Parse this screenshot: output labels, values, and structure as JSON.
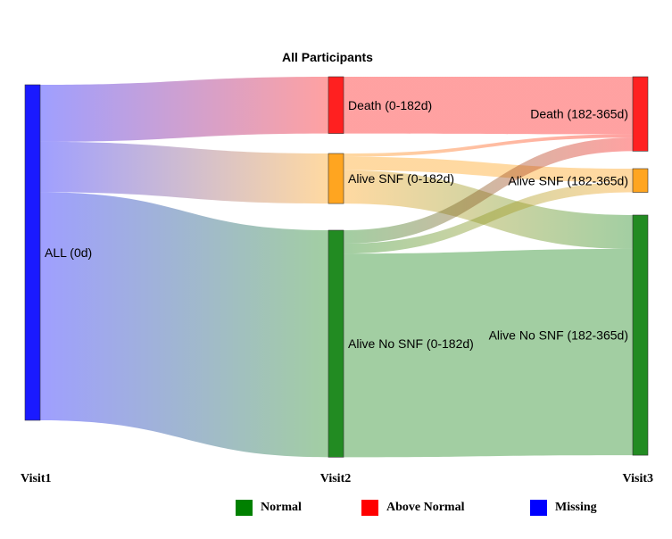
{
  "chart_data": {
    "type": "sankey",
    "title": "All Participants",
    "stages": [
      "Visit1",
      "Visit2",
      "Visit3"
    ],
    "nodes": [
      {
        "id": "all",
        "label": "ALL (0d)",
        "stage": 0,
        "color": "#1a1aff",
        "value": 100
      },
      {
        "id": "death1",
        "label": "Death (0-182d)",
        "stage": 1,
        "color": "#ff2020",
        "value": 17
      },
      {
        "id": "snf1",
        "label": "Alive SNF (0-182d)",
        "stage": 1,
        "color": "#ffa520",
        "value": 15
      },
      {
        "id": "nosnf1",
        "label": "Alive No SNF (0-182d)",
        "stage": 1,
        "color": "#228b22",
        "value": 68
      },
      {
        "id": "death2",
        "label": "Death (182-365d)",
        "stage": 2,
        "color": "#ff2020",
        "value": 22
      },
      {
        "id": "snf2",
        "label": "Alive SNF (182-365d)",
        "stage": 2,
        "color": "#ffa520",
        "value": 7
      },
      {
        "id": "nosnf2",
        "label": "Alive No SNF (182-365d)",
        "stage": 2,
        "color": "#228b22",
        "value": 71
      }
    ],
    "links": [
      {
        "source": "all",
        "target": "death1",
        "value": 17
      },
      {
        "source": "all",
        "target": "snf1",
        "value": 15
      },
      {
        "source": "all",
        "target": "nosnf1",
        "value": 68
      },
      {
        "source": "death1",
        "target": "death2",
        "value": 17
      },
      {
        "source": "snf1",
        "target": "death2",
        "value": 1
      },
      {
        "source": "snf1",
        "target": "snf2",
        "value": 4
      },
      {
        "source": "snf1",
        "target": "nosnf2",
        "value": 10
      },
      {
        "source": "nosnf1",
        "target": "death2",
        "value": 4
      },
      {
        "source": "nosnf1",
        "target": "snf2",
        "value": 3
      },
      {
        "source": "nosnf1",
        "target": "nosnf2",
        "value": 61
      }
    ],
    "legend": [
      {
        "label": "Normal",
        "color": "#008000"
      },
      {
        "label": "Above Normal",
        "color": "#ff0000"
      },
      {
        "label": "Missing",
        "color": "#0000ff"
      }
    ]
  }
}
